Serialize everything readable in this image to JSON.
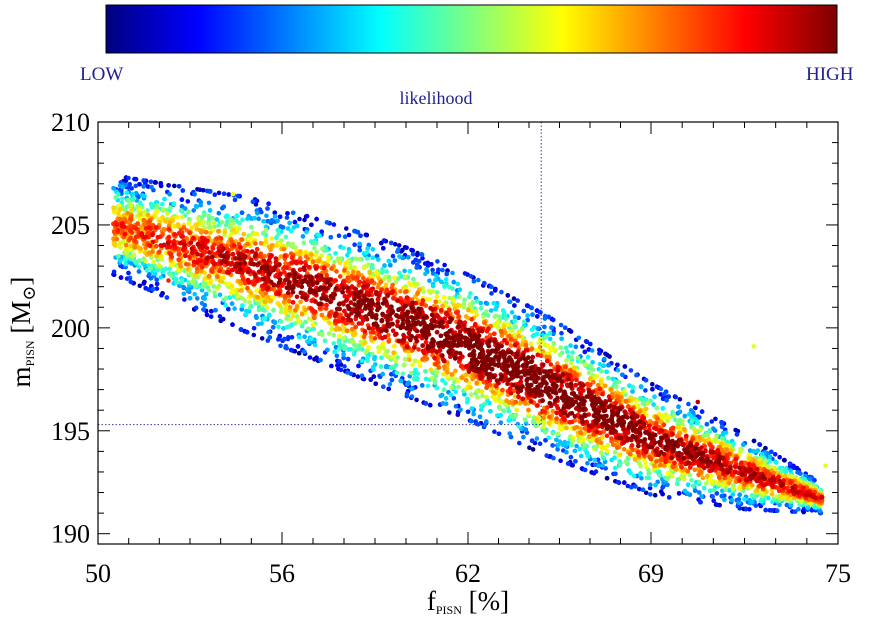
{
  "colorbar": {
    "low_label": "LOW",
    "high_label": "HIGH",
    "title": "likelihood",
    "stops": [
      "#00007f",
      "#0000ff",
      "#007fff",
      "#00ffff",
      "#7fff7f",
      "#ffff00",
      "#ff7f00",
      "#ff0000",
      "#7f0000"
    ]
  },
  "chart_data": {
    "type": "scatter",
    "title": "",
    "xlabel_main": "f",
    "xlabel_sub": "PISN",
    "xlabel_unit": " [%]",
    "ylabel_main": "m",
    "ylabel_sub": "PISN",
    "ylabel_unit_open": " [M",
    "ylabel_unit_symbol": "⊙",
    "ylabel_unit_close": "]",
    "xlim": [
      50,
      75
    ],
    "ylim": [
      189.5,
      210
    ],
    "xticks": [
      50,
      56,
      62,
      69,
      75
    ],
    "xtick_labels": [
      "50",
      "56",
      "62",
      "69",
      "75"
    ],
    "yticks": [
      190,
      195,
      200,
      205,
      210
    ],
    "ytick_labels": [
      "190",
      "195",
      "200",
      "205",
      "210"
    ],
    "color_scale": "jet",
    "reference": {
      "x": 64.8,
      "y": 195.3
    },
    "band": {
      "center_line": [
        [
          50.5,
          205.0
        ],
        [
          55,
          203.0
        ],
        [
          60,
          200.3
        ],
        [
          65,
          197.2
        ],
        [
          69,
          194.6
        ],
        [
          72,
          193.0
        ],
        [
          74.5,
          191.7
        ]
      ],
      "half_width_perpendicular": [
        [
          50.5,
          2.4
        ],
        [
          55,
          3.3
        ],
        [
          60,
          3.6
        ],
        [
          65,
          3.4
        ],
        [
          69,
          2.7
        ],
        [
          72,
          1.8
        ],
        [
          74.5,
          0.7
        ]
      ],
      "peak_x": 63.5,
      "n_points": 9000
    },
    "outliers": [
      {
        "x": 52.3,
        "y": 202.3,
        "likelihood": 0.85
      },
      {
        "x": 54.4,
        "y": 206.5,
        "likelihood": 0.62
      },
      {
        "x": 70.5,
        "y": 196.4,
        "likelihood": 0.95
      },
      {
        "x": 72.3,
        "y": 199.1,
        "likelihood": 0.6
      },
      {
        "x": 74.6,
        "y": 193.3,
        "likelihood": 0.6
      }
    ]
  }
}
